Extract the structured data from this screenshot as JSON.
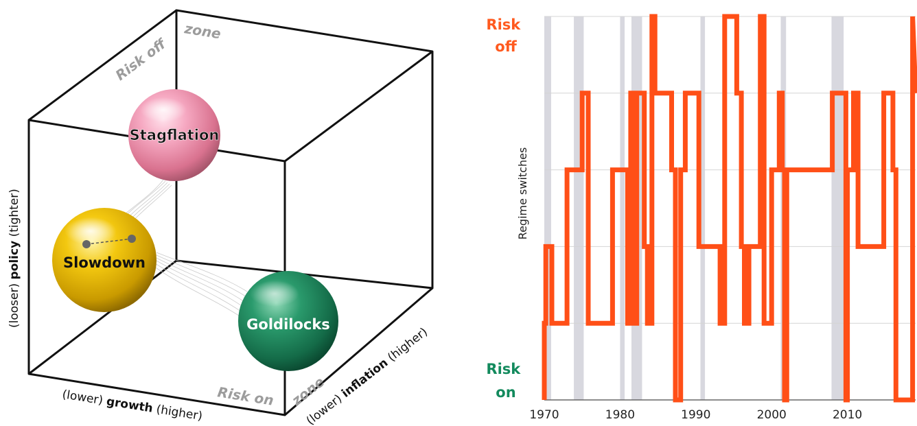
{
  "cube": {
    "zone_top_label": "zone",
    "risk_off_label": "Risk off",
    "risk_on_label": "Risk on",
    "zone_bottom_label": "zone",
    "policy_axis": {
      "low": "(looser) ",
      "bold": "policy",
      "high": " (tighter)"
    },
    "growth_axis": {
      "low": "(lower) ",
      "bold": "growth",
      "high": " (higher)"
    },
    "inflation_axis": {
      "low": "(lower) ",
      "bold": "inflation",
      "high": " (higher)"
    },
    "regimes": [
      {
        "name": "Stagflation",
        "color": "#f29ab4",
        "text_color": "#111111"
      },
      {
        "name": "Slowdown",
        "color": "#f2c200",
        "text_color": "#111111"
      },
      {
        "name": "Goldilocks",
        "color": "#1b7f57",
        "text_color": "#ffffff"
      }
    ]
  },
  "chart_data": {
    "type": "line",
    "title": "",
    "ylabel": "Regime switches",
    "y_top_label": [
      "Risk",
      "off"
    ],
    "y_bottom_label": [
      "Risk",
      "on"
    ],
    "x_ticks": [
      1970,
      1980,
      1990,
      2000,
      2010
    ],
    "xlim": [
      1970,
      2019
    ],
    "ylim": [
      0,
      5
    ],
    "grid": "horizontal",
    "line_color": "#ff4f17",
    "shade_color": "#d8d8df",
    "recessions": [
      [
        1970.0,
        1970.9
      ],
      [
        1973.9,
        1975.2
      ],
      [
        1980.0,
        1980.6
      ],
      [
        1981.5,
        1982.9
      ],
      [
        1990.6,
        1991.2
      ],
      [
        2001.2,
        2001.9
      ],
      [
        2007.9,
        2009.5
      ]
    ],
    "series": [
      {
        "x": [
          1970.0,
          1970.0,
          1970.2,
          1970.2,
          1971.0,
          1971.0,
          1973.0,
          1973.0,
          1975.0,
          1975.0,
          1975.8,
          1975.8,
          1979.0,
          1979.0,
          1981.0,
          1981.0,
          1981.4,
          1981.4,
          1981.8,
          1981.8,
          1982.2,
          1982.2,
          1983.2,
          1983.2,
          1983.6,
          1983.6,
          1984.2,
          1984.2,
          1984.6,
          1984.6,
          1985.2,
          1985.2,
          1986.8,
          1986.8,
          1987.3,
          1987.3,
          1988.0,
          1988.0,
          1988.6,
          1988.6,
          1989.7,
          1989.7,
          1990.4,
          1990.4,
          1991.2,
          1991.2,
          1993.2,
          1993.2,
          1993.8,
          1993.8,
          1995.4,
          1995.4,
          1996.0,
          1996.0,
          1996.4,
          1996.4,
          1997.0,
          1997.0,
          1998.5,
          1998.5,
          1999.0,
          1999.0,
          1999.3,
          1999.3,
          1999.6,
          1999.6,
          2000.0,
          2000.0,
          2001.0,
          2001.0,
          2001.4,
          2001.4,
          2001.7,
          2001.7,
          2002.0,
          2002.0,
          2003.0,
          2003.0,
          2004.2,
          2004.2,
          2008.0,
          2008.0,
          2009.8,
          2009.8,
          2010.0,
          2010.0,
          2010.8,
          2010.8,
          2011.4,
          2011.4,
          2011.8,
          2011.8,
          2014.8,
          2014.8,
          2016.0,
          2016.0,
          2016.4,
          2016.4,
          2018.6,
          2018.6,
          2019.0
        ],
        "y": [
          0,
          1,
          1,
          2,
          2,
          1,
          1,
          3,
          3,
          4,
          4,
          1,
          1,
          3,
          3,
          1,
          1,
          4,
          4,
          1,
          1,
          4,
          4,
          2,
          2,
          1,
          1,
          5,
          5,
          4,
          4,
          4,
          4,
          3,
          3,
          0,
          0,
          3,
          3,
          4,
          4,
          4,
          4,
          2,
          2,
          2,
          2,
          1,
          1,
          5,
          5,
          4,
          4,
          2,
          2,
          1,
          1,
          2,
          2,
          5,
          5,
          1,
          1,
          1,
          1,
          1,
          1,
          3,
          3,
          4,
          4,
          3,
          3,
          0,
          0,
          3,
          3,
          3,
          3,
          3,
          3,
          4,
          4,
          0,
          0,
          3,
          3,
          4,
          4,
          2,
          2,
          2,
          2,
          4,
          4,
          3,
          3,
          0,
          0,
          5,
          4
        ]
      }
    ]
  }
}
